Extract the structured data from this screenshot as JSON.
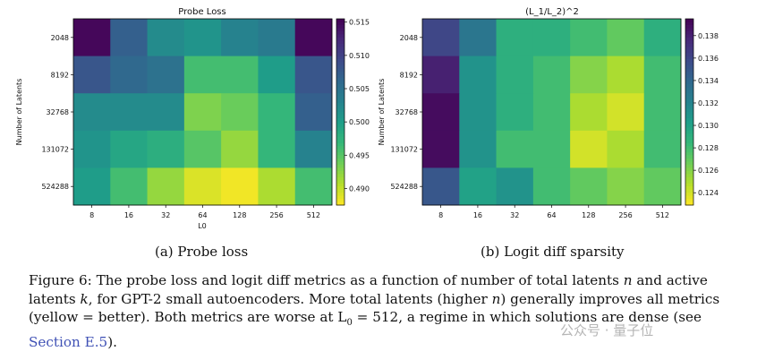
{
  "chart_data": [
    {
      "type": "heatmap",
      "title": "Probe Loss",
      "xlabel": "L0",
      "ylabel": "Number of Latents",
      "x_categories": [
        "8",
        "16",
        "32",
        "64",
        "128",
        "256",
        "512"
      ],
      "y_categories": [
        "2048",
        "8192",
        "32768",
        "131072",
        "524288"
      ],
      "values": [
        [
          0.515,
          0.507,
          0.502,
          0.501,
          0.503,
          0.504,
          0.515
        ],
        [
          0.508,
          0.506,
          0.505,
          0.496,
          0.496,
          0.5,
          0.508
        ],
        [
          0.502,
          0.502,
          0.502,
          0.493,
          0.494,
          0.497,
          0.507
        ],
        [
          0.501,
          0.499,
          0.498,
          0.495,
          0.492,
          0.497,
          0.503
        ],
        [
          0.5,
          0.496,
          0.492,
          0.489,
          0.488,
          0.491,
          0.496
        ]
      ],
      "colorbar": {
        "range": [
          0.4875,
          0.5155
        ],
        "ticks": [
          "0.490",
          "0.495",
          "0.500",
          "0.505",
          "0.510",
          "0.515"
        ],
        "tick_values": [
          0.49,
          0.495,
          0.5,
          0.505,
          0.51,
          0.515
        ]
      },
      "colormap": "viridis",
      "caption": "(a) Probe loss"
    },
    {
      "type": "heatmap",
      "title": "(L_1/L_2)^2",
      "xlabel": "",
      "ylabel": "Number of Latents",
      "x_categories": [
        "8",
        "16",
        "32",
        "64",
        "128",
        "256",
        "512"
      ],
      "y_categories": [
        "2048",
        "8192",
        "32768",
        "131072",
        "524288"
      ],
      "values": [
        [
          0.136,
          0.133,
          0.129,
          0.129,
          0.128,
          0.127,
          0.129
        ],
        [
          0.138,
          0.131,
          0.129,
          0.128,
          0.126,
          0.125,
          0.128
        ],
        [
          0.139,
          0.131,
          0.129,
          0.128,
          0.125,
          0.124,
          0.128
        ],
        [
          0.139,
          0.131,
          0.128,
          0.128,
          0.124,
          0.125,
          0.128
        ],
        [
          0.135,
          0.13,
          0.131,
          0.128,
          0.127,
          0.126,
          0.127
        ]
      ],
      "colorbar": {
        "range": [
          0.1229,
          0.1395
        ],
        "ticks": [
          "0.124",
          "0.126",
          "0.128",
          "0.130",
          "0.132",
          "0.134",
          "0.136",
          "0.138"
        ],
        "tick_values": [
          0.124,
          0.126,
          0.128,
          0.13,
          0.132,
          0.134,
          0.136,
          0.138
        ]
      },
      "colormap": "viridis",
      "caption": "(b) Logit diff sparsity"
    }
  ],
  "caption": {
    "prefix": "Figure 6: The probe loss and logit diff metrics as a function of number of total latents ",
    "n1": "n",
    "mid1": " and active latents ",
    "k": "k",
    "mid2": ", for GPT-2 small autoencoders. More total latents (higher ",
    "n2": "n",
    "mid3": ") generally improves all metrics (yellow = better). Both metrics are worse at L",
    "sub0": "0",
    "eq": " = 512",
    "mid4": ", a regime in which solutions are dense (see ",
    "link": "Section E.5",
    "end": ")."
  },
  "watermark": "公众号 · 量子位"
}
